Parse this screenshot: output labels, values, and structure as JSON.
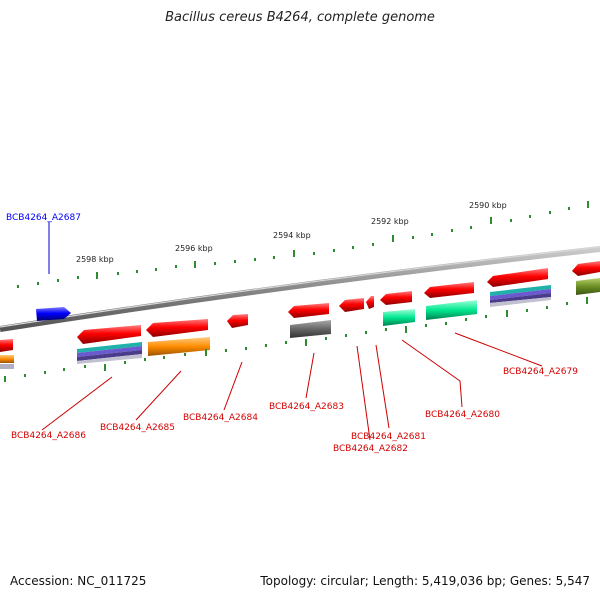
{
  "title": "Bacillus cereus B4264, complete genome",
  "footer": {
    "accession": "Accession: NC_011725",
    "summary": "Topology: circular; Length: 5,419,036 bp; Genes: 5,547"
  },
  "scale_labels": [
    "2598 kbp",
    "2596 kbp",
    "2594 kbp",
    "2592 kbp",
    "2590 kbp"
  ],
  "genes": [
    {
      "name": "BCB4264_A2687",
      "color": "#0000ff"
    },
    {
      "name": "BCB4264_A2686",
      "color": "#d40000"
    },
    {
      "name": "BCB4264_A2685",
      "color": "#d40000"
    },
    {
      "name": "BCB4264_A2684",
      "color": "#d40000"
    },
    {
      "name": "BCB4264_A2683",
      "color": "#d40000"
    },
    {
      "name": "BCB4264_A2682",
      "color": "#d40000"
    },
    {
      "name": "BCB4264_A2681",
      "color": "#d40000"
    },
    {
      "name": "BCB4264_A2680",
      "color": "#d40000"
    },
    {
      "name": "BCB4264_A2679",
      "color": "#d40000"
    }
  ],
  "colors": {
    "forward_gene": "#0000ff",
    "reverse_gene": "#ff0000",
    "backbone": "#888888",
    "ticks": "#2e8b2e"
  }
}
